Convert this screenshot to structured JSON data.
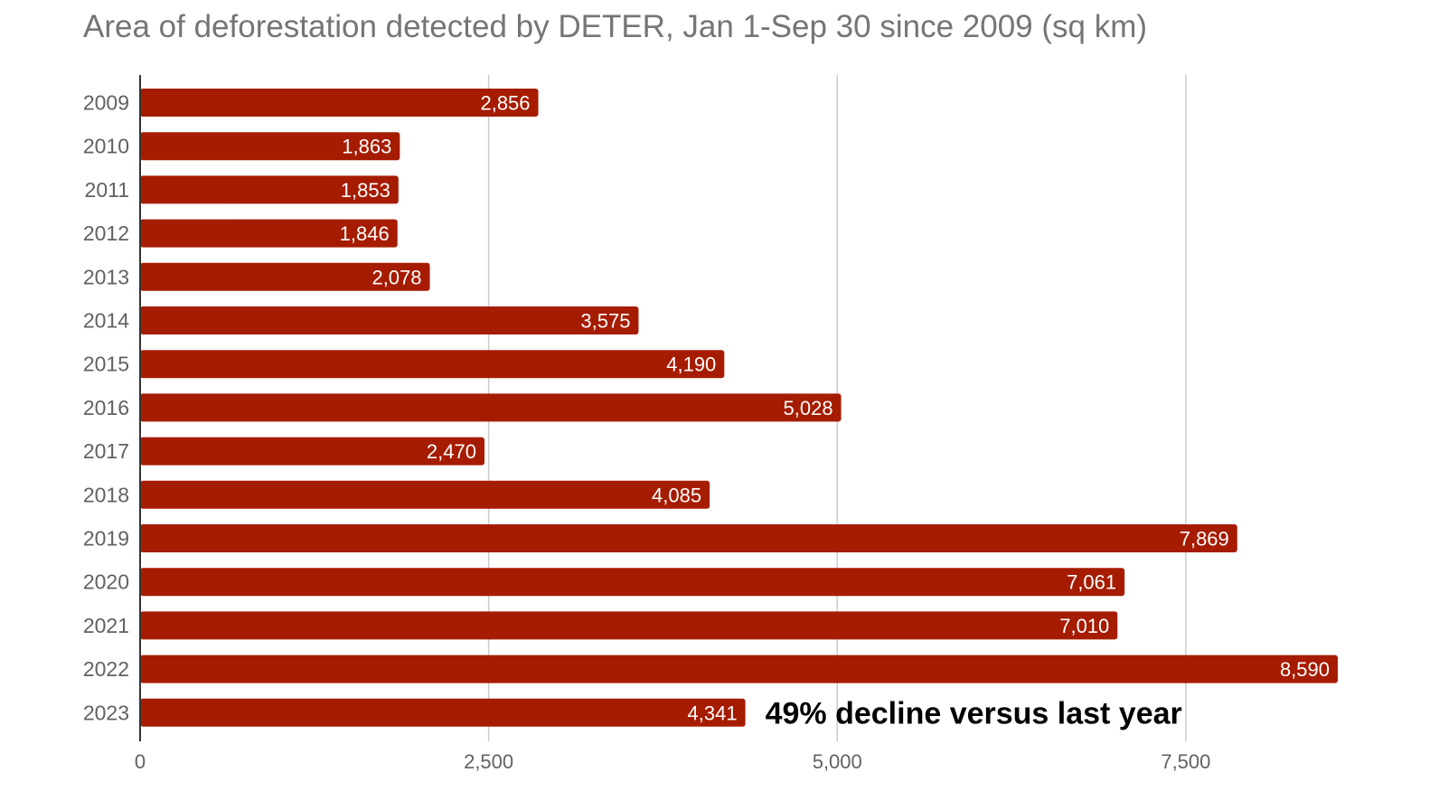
{
  "chart_data": {
    "type": "bar",
    "orientation": "horizontal",
    "title": "Area of deforestation detected by DETER, Jan 1-Sep 30 since 2009 (sq km)",
    "categories": [
      "2009",
      "2010",
      "2011",
      "2012",
      "2013",
      "2014",
      "2015",
      "2016",
      "2017",
      "2018",
      "2019",
      "2020",
      "2021",
      "2022",
      "2023"
    ],
    "values": [
      2856,
      1863,
      1853,
      1846,
      2078,
      3575,
      4190,
      5028,
      2470,
      4085,
      7869,
      7061,
      7010,
      8590,
      4341
    ],
    "value_labels": [
      "2,856",
      "1,863",
      "1,853",
      "1,846",
      "2,078",
      "3,575",
      "4,190",
      "5,028",
      "2,470",
      "4,085",
      "7,869",
      "7,061",
      "7,010",
      "8,590",
      "4,341"
    ],
    "xlim": [
      0,
      8590
    ],
    "xticks": [
      0,
      2500,
      5000,
      7500
    ],
    "xtick_labels": [
      "0",
      "2,500",
      "5,000",
      "7,500"
    ],
    "grid": true,
    "annotation": {
      "text": "49% decline versus last year",
      "category": "2023"
    },
    "colors": {
      "bar": "#a61c00",
      "grid": "#cccccc",
      "axis": "#333333"
    }
  }
}
